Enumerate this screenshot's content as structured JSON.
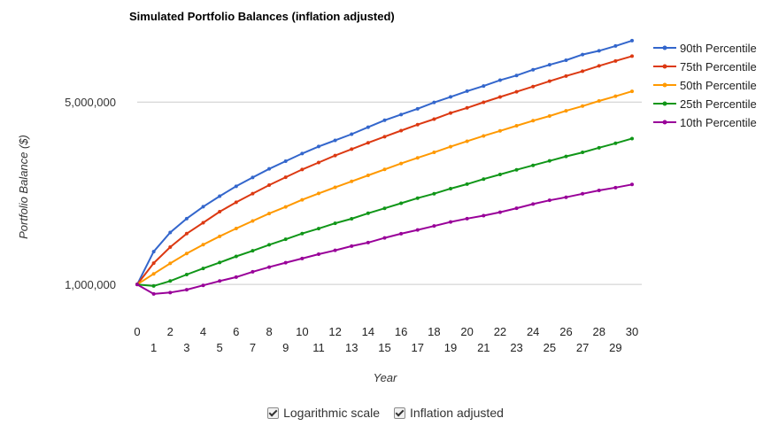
{
  "chart_data": {
    "type": "line",
    "title": "Simulated Portfolio Balances (inflation adjusted)",
    "xlabel": "Year",
    "ylabel": "Portfolio Balance ($)",
    "yscale": "log",
    "ylim": [
      750000,
      9000000
    ],
    "xlim": [
      0,
      30
    ],
    "ytick_values": [
      1000000,
      5000000
    ],
    "ytick_labels": [
      "1,000,000",
      "5,000,000"
    ],
    "x": [
      0,
      1,
      2,
      3,
      4,
      5,
      6,
      7,
      8,
      9,
      10,
      11,
      12,
      13,
      14,
      15,
      16,
      17,
      18,
      19,
      20,
      21,
      22,
      23,
      24,
      25,
      26,
      27,
      28,
      29,
      30
    ],
    "legend_position": "right",
    "series": [
      {
        "name": "90th Percentile",
        "color": "#3366cc",
        "values": [
          1000000,
          1336000,
          1582000,
          1788000,
          1986000,
          2180000,
          2378000,
          2570000,
          2773000,
          2967000,
          3174000,
          3378000,
          3565000,
          3767000,
          4004000,
          4257000,
          4478000,
          4712000,
          4983000,
          5232000,
          5504000,
          5761000,
          6063000,
          6322000,
          6651000,
          6945000,
          7233000,
          7601000,
          7855000,
          8199000,
          8595000
        ]
      },
      {
        "name": "75th Percentile",
        "color": "#dc3912",
        "values": [
          1000000,
          1207000,
          1391000,
          1566000,
          1724000,
          1901000,
          2065000,
          2229000,
          2403000,
          2575000,
          2757000,
          2933000,
          3119000,
          3300000,
          3490000,
          3683000,
          3886000,
          4096000,
          4300000,
          4540000,
          4749000,
          4989000,
          5227000,
          5475000,
          5733000,
          6011000,
          6291000,
          6563000,
          6881000,
          7184000,
          7496000
        ]
      },
      {
        "name": "50th Percentile",
        "color": "#ff9900",
        "values": [
          1000000,
          1098000,
          1204000,
          1314000,
          1420000,
          1529000,
          1638000,
          1751000,
          1870000,
          1982000,
          2111000,
          2233000,
          2356000,
          2483000,
          2619000,
          2759000,
          2908000,
          3056000,
          3207000,
          3373000,
          3539000,
          3709000,
          3877000,
          4056000,
          4242000,
          4421000,
          4628000,
          4826000,
          5047000,
          5262000,
          5496000
        ]
      },
      {
        "name": "25th Percentile",
        "color": "#109618",
        "values": [
          1000000,
          987000,
          1031000,
          1091000,
          1152000,
          1214000,
          1281000,
          1346000,
          1419000,
          1490000,
          1567000,
          1637000,
          1716000,
          1786000,
          1874000,
          1958000,
          2047000,
          2142000,
          2227000,
          2328000,
          2424000,
          2533000,
          2638000,
          2750000,
          2860000,
          2975000,
          3095000,
          3207000,
          3341000,
          3475000,
          3623000
        ]
      },
      {
        "name": "10th Percentile",
        "color": "#990099",
        "values": [
          1000000,
          920000,
          931000,
          955000,
          992000,
          1031000,
          1067000,
          1118000,
          1165000,
          1212000,
          1257000,
          1306000,
          1351000,
          1403000,
          1447000,
          1508000,
          1565000,
          1618000,
          1675000,
          1736000,
          1788000,
          1835000,
          1892000,
          1960000,
          2033000,
          2101000,
          2159000,
          2226000,
          2293000,
          2350000,
          2416000
        ]
      }
    ]
  },
  "controls": {
    "log_scale_label": "Logarithmic scale",
    "inflation_label": "Inflation adjusted"
  }
}
